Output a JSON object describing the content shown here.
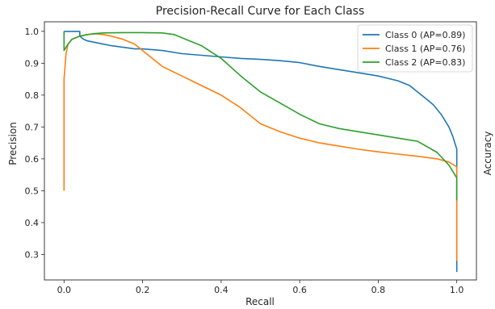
{
  "chart_data": {
    "type": "line",
    "title": "Precision-Recall Curve for Each Class",
    "xlabel": "Recall",
    "ylabel": "Precision",
    "right_label": "Accuracy",
    "xlim": [
      -0.05,
      1.05
    ],
    "ylim": [
      0.22,
      1.03
    ],
    "x_ticks": [
      0.0,
      0.2,
      0.4,
      0.6,
      0.8,
      1.0
    ],
    "x_tick_labels": [
      "0.0",
      "0.2",
      "0.4",
      "0.6",
      "0.8",
      "1.0"
    ],
    "y_ticks": [
      0.3,
      0.4,
      0.5,
      0.6,
      0.7,
      0.8,
      0.9,
      1.0
    ],
    "y_tick_labels": [
      "0.3",
      "0.4",
      "0.5",
      "0.6",
      "0.7",
      "0.8",
      "0.9",
      "1.0"
    ],
    "grid": false,
    "legend_position": "top-right",
    "series": [
      {
        "name": "Class 0 (AP=0.89)",
        "color": "#1f77b4",
        "x": [
          0.0,
          0.0,
          0.04,
          0.04,
          0.05,
          0.06,
          0.08,
          0.1,
          0.12,
          0.15,
          0.18,
          0.2,
          0.25,
          0.3,
          0.35,
          0.4,
          0.45,
          0.5,
          0.55,
          0.6,
          0.65,
          0.7,
          0.75,
          0.8,
          0.85,
          0.88,
          0.9,
          0.92,
          0.94,
          0.96,
          0.98,
          0.99,
          1.0,
          1.0,
          1.0
        ],
        "y": [
          1.0,
          1.0,
          1.0,
          0.985,
          0.975,
          0.97,
          0.965,
          0.96,
          0.955,
          0.95,
          0.945,
          0.945,
          0.94,
          0.93,
          0.925,
          0.92,
          0.915,
          0.912,
          0.908,
          0.902,
          0.89,
          0.88,
          0.87,
          0.86,
          0.845,
          0.83,
          0.81,
          0.79,
          0.77,
          0.74,
          0.7,
          0.67,
          0.63,
          0.4,
          0.245
        ]
      },
      {
        "name": "Class 1 (AP=0.76)",
        "color": "#ff7f0e",
        "x": [
          0.0,
          0.0,
          0.005,
          0.01,
          0.02,
          0.04,
          0.06,
          0.08,
          0.1,
          0.12,
          0.15,
          0.18,
          0.2,
          0.22,
          0.25,
          0.3,
          0.35,
          0.4,
          0.45,
          0.5,
          0.55,
          0.6,
          0.65,
          0.7,
          0.75,
          0.8,
          0.85,
          0.9,
          0.95,
          0.98,
          1.0,
          1.0
        ],
        "y": [
          0.5,
          0.85,
          0.93,
          0.96,
          0.975,
          0.985,
          0.99,
          0.992,
          0.99,
          0.985,
          0.975,
          0.96,
          0.94,
          0.92,
          0.89,
          0.86,
          0.83,
          0.8,
          0.76,
          0.71,
          0.685,
          0.665,
          0.65,
          0.64,
          0.63,
          0.622,
          0.615,
          0.608,
          0.6,
          0.59,
          0.575,
          0.28
        ]
      },
      {
        "name": "Class 2 (AP=0.83)",
        "color": "#2ca02c",
        "x": [
          0.0,
          0.0,
          0.01,
          0.02,
          0.04,
          0.06,
          0.08,
          0.1,
          0.15,
          0.2,
          0.25,
          0.28,
          0.3,
          0.35,
          0.4,
          0.45,
          0.5,
          0.55,
          0.6,
          0.65,
          0.7,
          0.75,
          0.8,
          0.85,
          0.9,
          0.95,
          0.98,
          1.0,
          1.0
        ],
        "y": [
          1.0,
          0.94,
          0.96,
          0.975,
          0.985,
          0.99,
          0.993,
          0.995,
          0.996,
          0.996,
          0.995,
          0.99,
          0.98,
          0.955,
          0.915,
          0.86,
          0.81,
          0.775,
          0.74,
          0.71,
          0.695,
          0.685,
          0.675,
          0.665,
          0.655,
          0.62,
          0.58,
          0.54,
          0.47
        ]
      }
    ]
  }
}
